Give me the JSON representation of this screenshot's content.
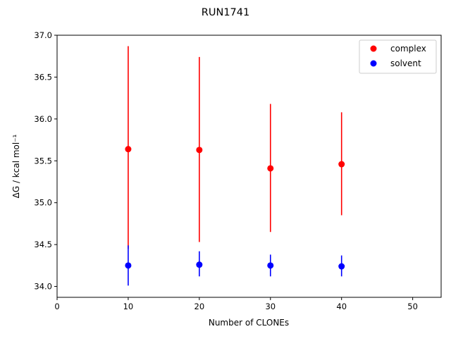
{
  "chart_data": {
    "type": "scatter",
    "title": "RUN1741",
    "xlabel": "Number of CLONEs",
    "ylabel": "ΔG / kcal mol⁻¹",
    "xlim": [
      0,
      54
    ],
    "ylim": [
      33.87,
      37.0
    ],
    "xticks": [
      0,
      10,
      20,
      30,
      40,
      50
    ],
    "yticks": [
      34.0,
      34.5,
      35.0,
      35.5,
      36.0,
      36.5,
      37.0
    ],
    "grid": false,
    "legend_position": "top-right",
    "series": [
      {
        "name": "complex",
        "color": "#ff0000",
        "x": [
          10,
          20,
          30,
          40
        ],
        "y": [
          35.64,
          35.63,
          35.41,
          35.46
        ],
        "err_low": [
          34.45,
          34.53,
          34.65,
          34.85
        ],
        "err_high": [
          36.87,
          36.74,
          36.18,
          36.08
        ]
      },
      {
        "name": "solvent",
        "color": "#0000ff",
        "x": [
          10,
          20,
          30,
          40
        ],
        "y": [
          34.25,
          34.26,
          34.25,
          34.24
        ],
        "err_low": [
          34.01,
          34.12,
          34.12,
          34.12
        ],
        "err_high": [
          34.49,
          34.42,
          34.38,
          34.37
        ]
      }
    ]
  }
}
